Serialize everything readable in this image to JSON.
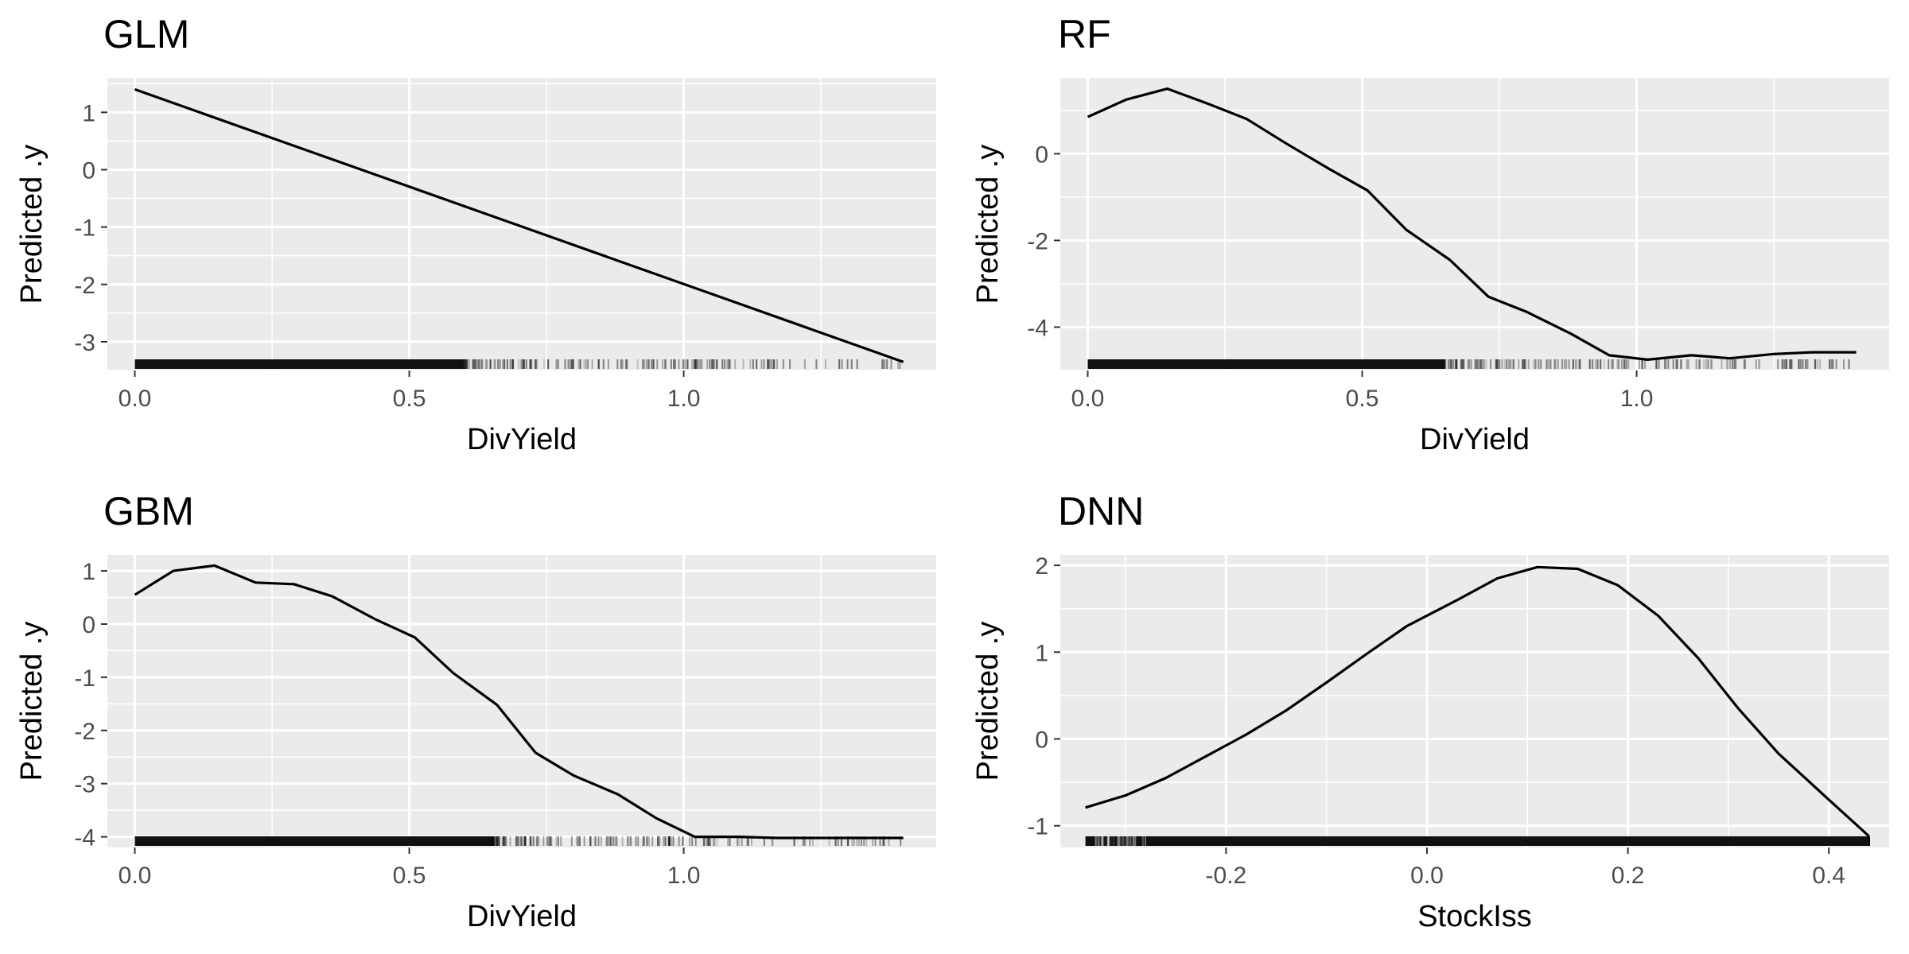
{
  "chart_data": [
    {
      "type": "line",
      "title": "GLM",
      "xlabel": "DivYield",
      "ylabel": "Predicted .y",
      "xlim": [
        -0.05,
        1.46
      ],
      "ylim": [
        -3.5,
        1.6
      ],
      "x_ticks": [
        0.0,
        0.5,
        1.0
      ],
      "x_tick_labels": [
        "0.0",
        "0.5",
        "1.0"
      ],
      "y_ticks": [
        1,
        0,
        -1,
        -2,
        -3
      ],
      "y_tick_labels": [
        "1",
        "0",
        "-1",
        "-2",
        "-3"
      ],
      "grid": true,
      "rug": {
        "from": 0.0,
        "to": 1.4,
        "dense_until": 0.6
      },
      "series": [
        {
          "x": [
            0.0,
            1.4
          ],
          "y": [
            1.4,
            -3.35
          ]
        }
      ]
    },
    {
      "type": "line",
      "title": "RF",
      "xlabel": "DivYield",
      "ylabel": "Predicted .y",
      "xlim": [
        -0.05,
        1.46
      ],
      "ylim": [
        -5.0,
        1.75
      ],
      "x_ticks": [
        0.0,
        0.5,
        1.0
      ],
      "x_tick_labels": [
        "0.0",
        "0.5",
        "1.0"
      ],
      "y_ticks": [
        0,
        -2,
        -4
      ],
      "y_tick_labels": [
        "0",
        "-2",
        "-4"
      ],
      "grid": true,
      "rug": {
        "from": 0.0,
        "to": 1.4,
        "dense_until": 0.65
      },
      "series": [
        {
          "x": [
            0.0,
            0.07,
            0.145,
            0.22,
            0.29,
            0.36,
            0.44,
            0.51,
            0.58,
            0.66,
            0.73,
            0.8,
            0.88,
            0.95,
            1.02,
            1.1,
            1.17,
            1.25,
            1.32,
            1.4
          ],
          "y": [
            0.85,
            1.25,
            1.5,
            1.15,
            0.8,
            0.25,
            -0.35,
            -0.85,
            -1.75,
            -2.45,
            -3.3,
            -3.65,
            -4.15,
            -4.65,
            -4.75,
            -4.65,
            -4.72,
            -4.62,
            -4.58,
            -4.58
          ]
        }
      ]
    },
    {
      "type": "line",
      "title": "GBM",
      "xlabel": "DivYield",
      "ylabel": "Predicted .y",
      "xlim": [
        -0.05,
        1.46
      ],
      "ylim": [
        -4.2,
        1.3
      ],
      "x_ticks": [
        0.0,
        0.5,
        1.0
      ],
      "x_tick_labels": [
        "0.0",
        "0.5",
        "1.0"
      ],
      "y_ticks": [
        1,
        0,
        -1,
        -2,
        -3,
        -4
      ],
      "y_tick_labels": [
        "1",
        "0",
        "-1",
        "-2",
        "-3",
        "-4"
      ],
      "grid": true,
      "rug": {
        "from": 0.0,
        "to": 1.4,
        "dense_until": 0.65
      },
      "series": [
        {
          "x": [
            0.0,
            0.07,
            0.145,
            0.22,
            0.29,
            0.36,
            0.44,
            0.51,
            0.58,
            0.66,
            0.73,
            0.8,
            0.88,
            0.95,
            1.02,
            1.1,
            1.17,
            1.25,
            1.32,
            1.4
          ],
          "y": [
            0.55,
            1.0,
            1.1,
            0.78,
            0.75,
            0.52,
            0.08,
            -0.25,
            -0.92,
            -1.52,
            -2.42,
            -2.85,
            -3.2,
            -3.65,
            -4.0,
            -4.0,
            -4.02,
            -4.02,
            -4.02,
            -4.02
          ]
        }
      ]
    },
    {
      "type": "line",
      "title": "DNN",
      "xlabel": "StockIss",
      "ylabel": "Predicted .y",
      "xlim": [
        -0.365,
        0.46
      ],
      "ylim": [
        -1.25,
        2.12
      ],
      "x_ticks": [
        -0.2,
        0.0,
        0.2,
        0.4
      ],
      "x_tick_labels": [
        "-0.2",
        "0.0",
        "0.2",
        "0.4"
      ],
      "y_ticks": [
        2,
        1,
        0,
        -1
      ],
      "y_tick_labels": [
        "2",
        "1",
        "0",
        "-1"
      ],
      "grid": true,
      "rug": {
        "from": -0.34,
        "to": 0.44,
        "dense_until": 0.44
      },
      "series": [
        {
          "x": [
            -0.34,
            -0.3,
            -0.26,
            -0.22,
            -0.18,
            -0.14,
            -0.1,
            -0.06,
            -0.02,
            0.03,
            0.07,
            0.11,
            0.15,
            0.19,
            0.23,
            0.27,
            0.31,
            0.35,
            0.4,
            0.44
          ],
          "y": [
            -0.79,
            -0.65,
            -0.45,
            -0.2,
            0.05,
            0.33,
            0.65,
            0.98,
            1.3,
            1.6,
            1.85,
            1.98,
            1.96,
            1.77,
            1.42,
            0.93,
            0.35,
            -0.17,
            -0.7,
            -1.12
          ]
        }
      ]
    }
  ]
}
